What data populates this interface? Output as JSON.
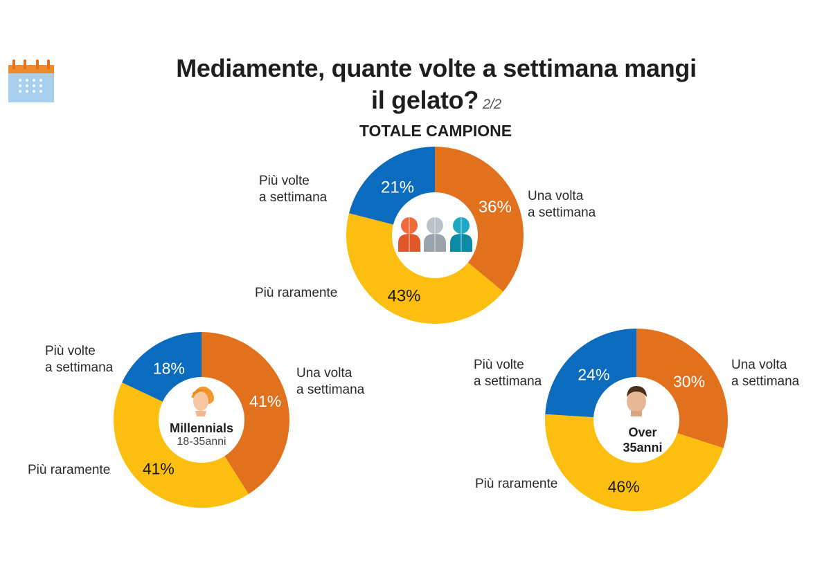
{
  "title": {
    "line1": "Mediamente, quante volte a settimana mangi",
    "line2": "il gelato?",
    "pager": "2/2"
  },
  "colors": {
    "una_volta": "#E2711D",
    "piu_volte": "#0B6BBF",
    "piu_raramente": "#FDBF0F"
  },
  "icons": {
    "calendar": "calendar-icon",
    "total": "people-group-icon",
    "millennials": "young-person-icon",
    "over35": "adult-man-icon"
  },
  "chart_data": [
    {
      "type": "pie",
      "title": "TOTALE CAMPIONE",
      "categories": [
        "Una volta a settimana",
        "Più raramente",
        "Più volte a settimana"
      ],
      "values": [
        36,
        43,
        21
      ],
      "labels": [
        "36%",
        "43%",
        "21%"
      ],
      "legend": {
        "una_volta": [
          "Una volta",
          "a settimana"
        ],
        "piu_volte": [
          "Più volte",
          "a settimana"
        ],
        "piu_raramente": "Più raramente"
      }
    },
    {
      "type": "pie",
      "title": "Millennials",
      "subtitle": "18-35anni",
      "categories": [
        "Una volta a settimana",
        "Più raramente",
        "Più volte a settimana"
      ],
      "values": [
        41,
        41,
        18
      ],
      "labels": [
        "41%",
        "41%",
        "18%"
      ],
      "legend": {
        "una_volta": [
          "Una volta",
          "a settimana"
        ],
        "piu_volte": [
          "Più volte",
          "a settimana"
        ],
        "piu_raramente": "Più raramente"
      }
    },
    {
      "type": "pie",
      "title": "Over",
      "subtitle": "35anni",
      "categories": [
        "Una volta a settimana",
        "Più raramente",
        "Più volte a settimana"
      ],
      "values": [
        30,
        46,
        24
      ],
      "labels": [
        "30%",
        "46%",
        "24%"
      ],
      "legend": {
        "una_volta": [
          "Una volta",
          "a settimana"
        ],
        "piu_volte": [
          "Più volte",
          "a settimana"
        ],
        "piu_raramente": "Più raramente"
      }
    }
  ]
}
